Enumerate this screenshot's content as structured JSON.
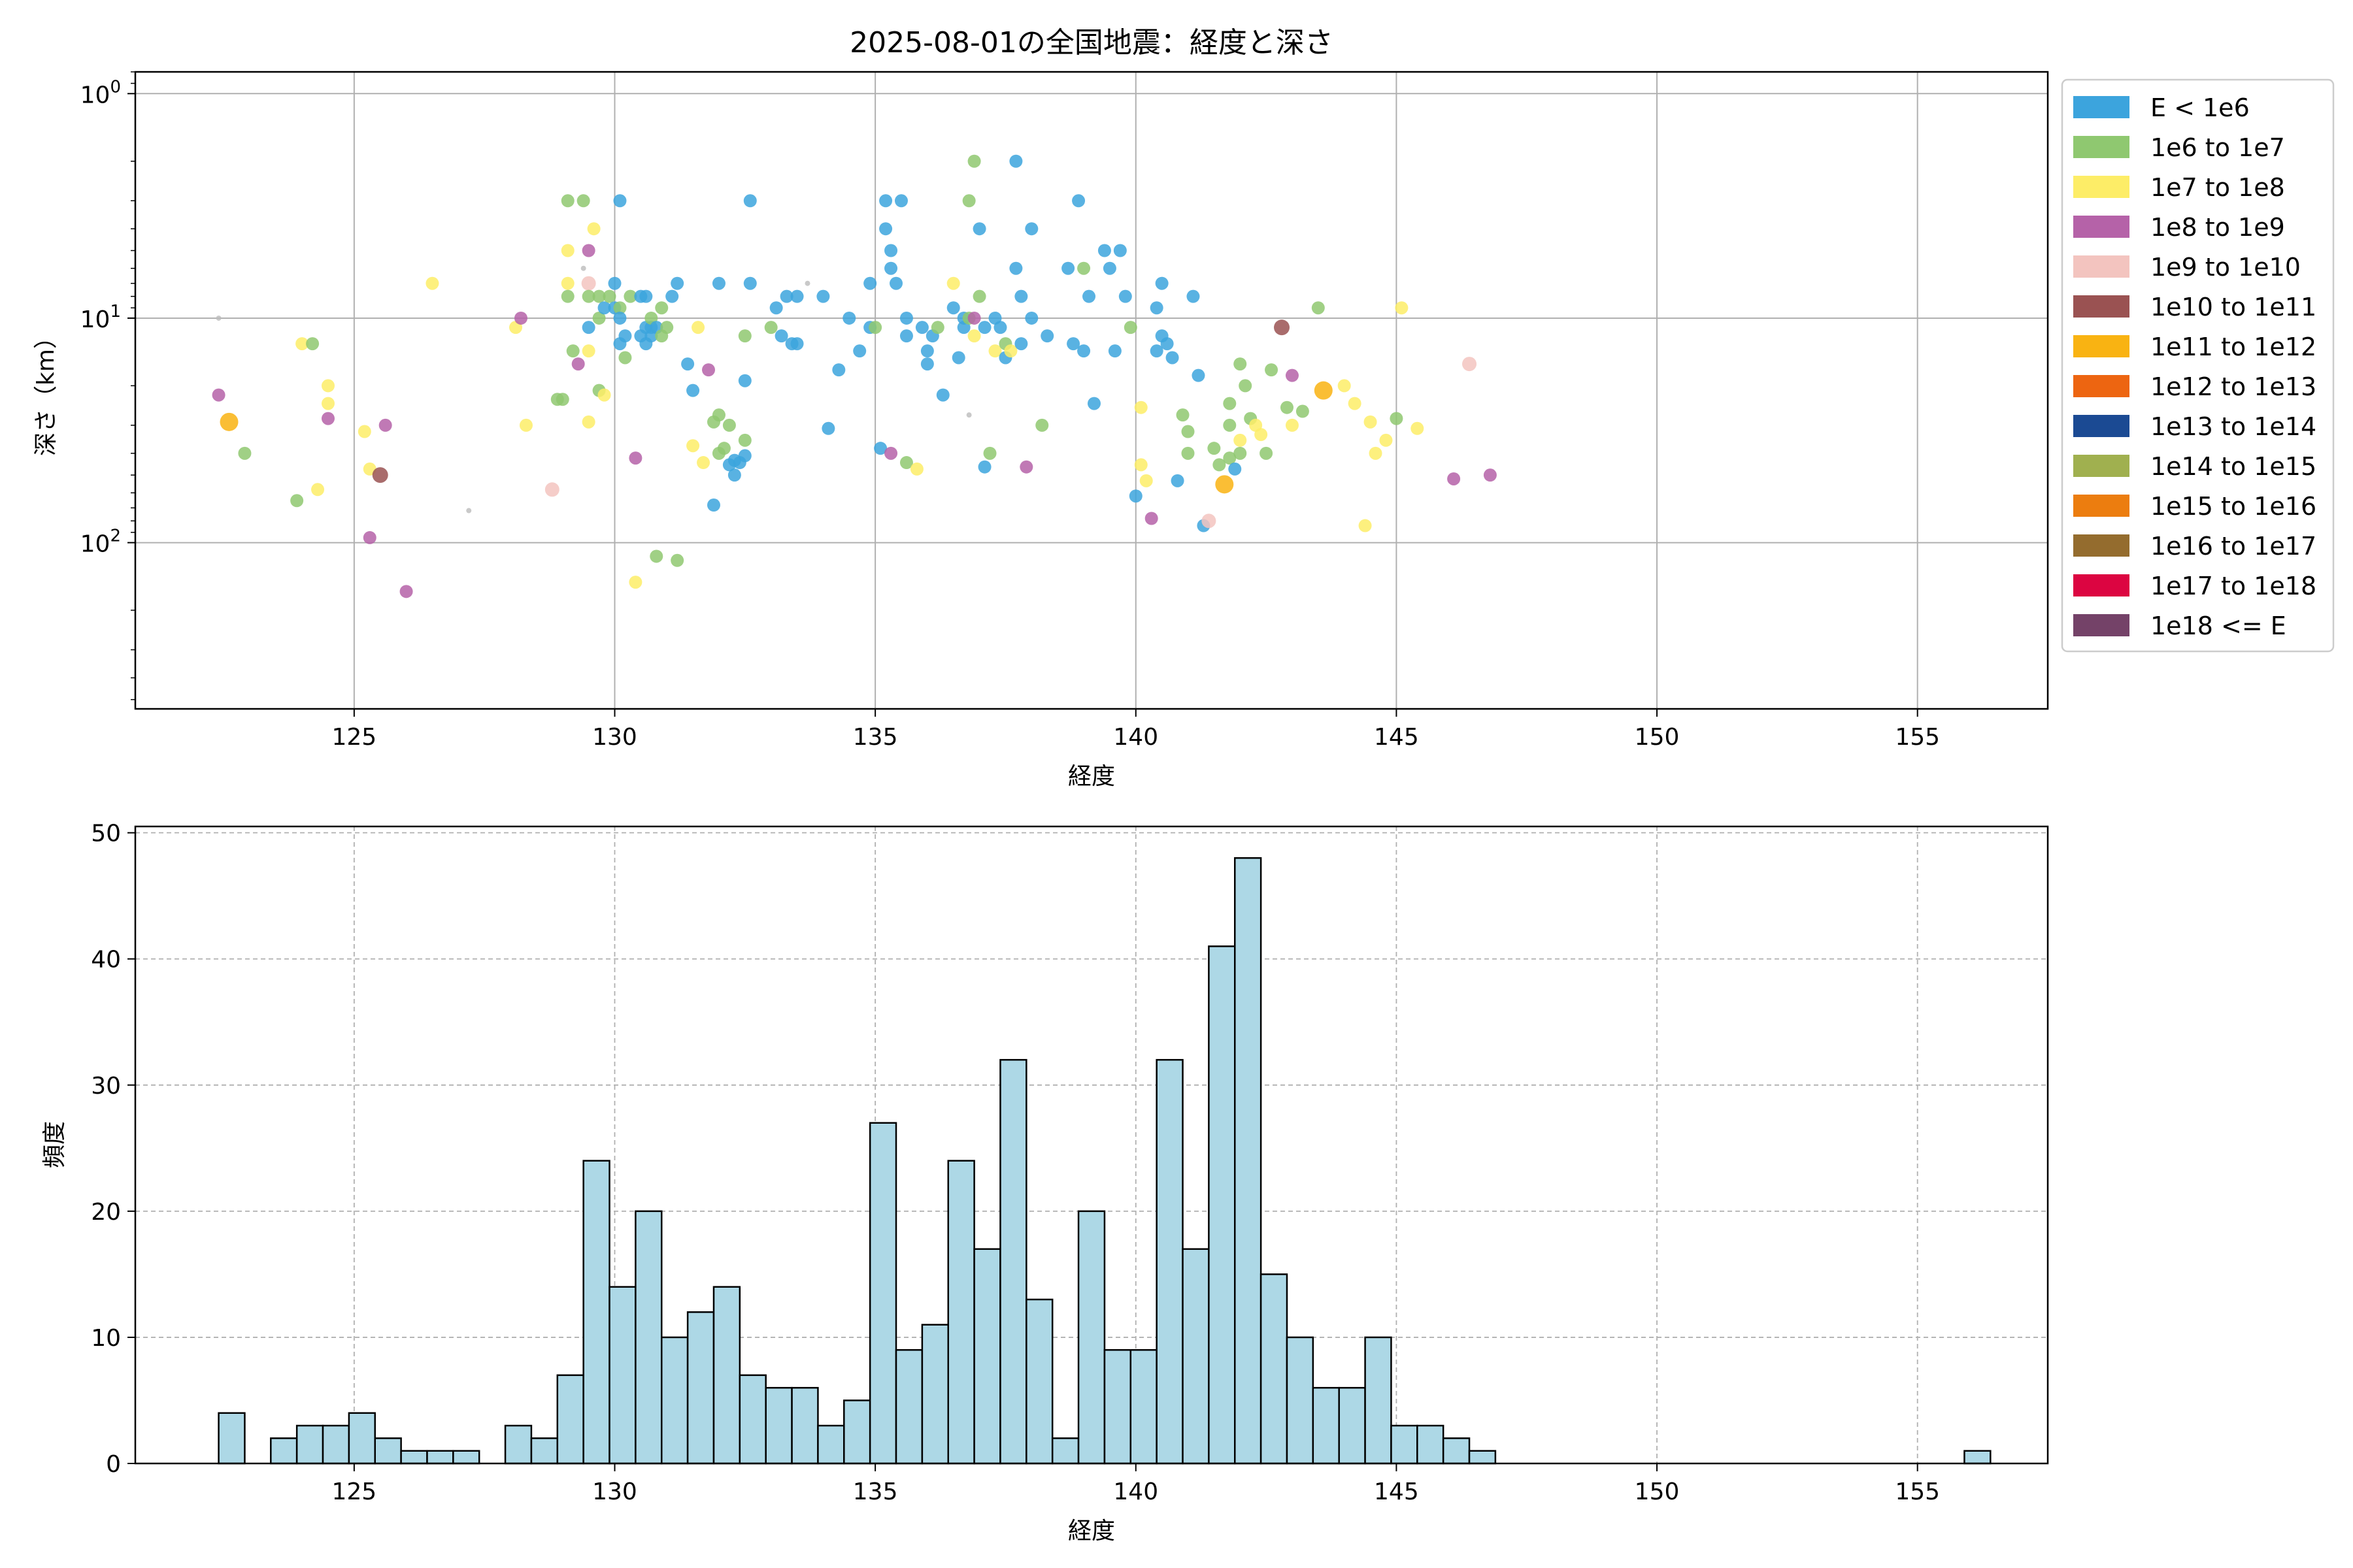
{
  "chart_data": [
    {
      "type": "scatter",
      "title": "2025-08-01の全国地震：経度と深さ",
      "xlabel": "経度",
      "ylabel": "深さ（km）",
      "xlim": [
        120.8,
        157.5
      ],
      "ylim": [
        0.8,
        550
      ],
      "y_scale": "log",
      "y_inverted": true,
      "xticks": [
        125,
        130,
        135,
        140,
        145,
        150,
        155
      ],
      "yticks": [
        {
          "value": 1,
          "base": "10",
          "exp": "0"
        },
        {
          "value": 10,
          "base": "10",
          "exp": "1"
        },
        {
          "value": 100,
          "base": "10",
          "exp": "2"
        }
      ],
      "grid": true,
      "legend_position": "outside-right",
      "legend": [
        {
          "label": "E < 1e6",
          "color": "#3ca4dd"
        },
        {
          "label": "1e6 to 1e7",
          "color": "#8fc870"
        },
        {
          "label": "1e7 to 1e8",
          "color": "#fded67"
        },
        {
          "label": "1e8 to 1e9",
          "color": "#b562a8"
        },
        {
          "label": "1e9 to 1e10",
          "color": "#f3c4bf"
        },
        {
          "label": "1e10 to 1e11",
          "color": "#9a5252"
        },
        {
          "label": "1e11 to 1e12",
          "color": "#f9b312"
        },
        {
          "label": "1e12 to 1e13",
          "color": "#ed6511"
        },
        {
          "label": "1e13 to 1e14",
          "color": "#1b4a93"
        },
        {
          "label": "1e14 to 1e15",
          "color": "#a0b04f"
        },
        {
          "label": "1e15 to 1e16",
          "color": "#ec7d0f"
        },
        {
          "label": "1e16 to 1e17",
          "color": "#946c2e"
        },
        {
          "label": "1e17 to 1e18",
          "color": "#dc0541"
        },
        {
          "label": "1e18 <= E",
          "color": "#744268"
        }
      ],
      "faint_color": "#bbbbbb",
      "points": [
        [
          122.4,
          10,
          -1
        ],
        [
          122.4,
          22,
          3
        ],
        [
          122.6,
          29,
          6
        ],
        [
          122.9,
          40,
          1
        ],
        [
          123.9,
          65,
          1
        ],
        [
          124.0,
          13,
          2
        ],
        [
          124.2,
          13,
          1
        ],
        [
          124.3,
          58,
          2
        ],
        [
          124.5,
          20,
          2
        ],
        [
          124.5,
          24,
          2
        ],
        [
          124.5,
          28,
          3
        ],
        [
          125.2,
          32,
          2
        ],
        [
          125.3,
          47,
          2
        ],
        [
          125.3,
          95,
          3
        ],
        [
          125.5,
          50,
          5
        ],
        [
          125.6,
          30,
          3
        ],
        [
          126.0,
          165,
          3
        ],
        [
          126.5,
          7,
          2
        ],
        [
          127.2,
          72,
          -1
        ],
        [
          128.1,
          11,
          2
        ],
        [
          128.2,
          10,
          3
        ],
        [
          128.3,
          30,
          2
        ],
        [
          128.8,
          58,
          4
        ],
        [
          128.9,
          23,
          1
        ],
        [
          129.0,
          23,
          1
        ],
        [
          129.1,
          3,
          1
        ],
        [
          129.1,
          5,
          2
        ],
        [
          129.1,
          7,
          2
        ],
        [
          129.1,
          8,
          1
        ],
        [
          129.2,
          14,
          1
        ],
        [
          129.3,
          16,
          3
        ],
        [
          129.4,
          3,
          1
        ],
        [
          129.4,
          6,
          -1
        ],
        [
          129.5,
          7,
          4
        ],
        [
          129.5,
          8,
          1
        ],
        [
          129.5,
          5,
          3
        ],
        [
          129.5,
          11,
          0
        ],
        [
          129.5,
          14,
          2
        ],
        [
          129.5,
          29,
          2
        ],
        [
          129.6,
          4,
          2
        ],
        [
          129.7,
          8,
          1
        ],
        [
          129.7,
          10,
          1
        ],
        [
          129.8,
          9,
          0
        ],
        [
          129.7,
          21,
          1
        ],
        [
          129.8,
          22,
          2
        ],
        [
          129.9,
          8,
          1
        ],
        [
          130.0,
          7,
          0
        ],
        [
          130.0,
          9,
          0
        ],
        [
          130.1,
          9,
          1
        ],
        [
          130.1,
          10,
          0
        ],
        [
          130.1,
          13,
          0
        ],
        [
          130.1,
          3,
          0
        ],
        [
          130.2,
          12,
          0
        ],
        [
          130.2,
          15,
          1
        ],
        [
          130.3,
          8,
          1
        ],
        [
          130.4,
          42,
          3
        ],
        [
          130.4,
          150,
          2
        ],
        [
          130.5,
          8,
          0
        ],
        [
          130.5,
          12,
          0
        ],
        [
          130.6,
          11,
          0
        ],
        [
          130.6,
          13,
          0
        ],
        [
          130.6,
          8,
          0
        ],
        [
          130.7,
          11,
          0
        ],
        [
          130.7,
          12,
          0
        ],
        [
          130.7,
          10,
          1
        ],
        [
          130.8,
          11,
          0
        ],
        [
          130.8,
          115,
          1
        ],
        [
          130.9,
          9,
          1
        ],
        [
          130.9,
          12,
          1
        ],
        [
          131.0,
          11,
          1
        ],
        [
          131.1,
          8,
          0
        ],
        [
          131.2,
          7,
          0
        ],
        [
          131.2,
          120,
          1
        ],
        [
          131.4,
          16,
          0
        ],
        [
          131.5,
          21,
          0
        ],
        [
          131.5,
          37,
          2
        ],
        [
          131.6,
          11,
          2
        ],
        [
          131.7,
          44,
          2
        ],
        [
          131.8,
          17,
          3
        ],
        [
          131.9,
          68,
          0
        ],
        [
          131.9,
          29,
          1
        ],
        [
          132.0,
          7,
          0
        ],
        [
          132.0,
          27,
          1
        ],
        [
          132.0,
          40,
          1
        ],
        [
          132.1,
          38,
          1
        ],
        [
          132.2,
          30,
          1
        ],
        [
          132.2,
          45,
          0
        ],
        [
          132.3,
          50,
          0
        ],
        [
          132.3,
          43,
          0
        ],
        [
          132.4,
          44,
          0
        ],
        [
          132.5,
          41,
          0
        ],
        [
          132.5,
          12,
          1
        ],
        [
          132.5,
          19,
          0
        ],
        [
          132.5,
          35,
          1
        ],
        [
          132.6,
          3,
          0
        ],
        [
          132.6,
          7,
          0
        ],
        [
          133.0,
          11,
          1
        ],
        [
          133.1,
          9,
          0
        ],
        [
          133.2,
          12,
          0
        ],
        [
          133.3,
          8,
          0
        ],
        [
          133.4,
          13,
          0
        ],
        [
          133.5,
          8,
          0
        ],
        [
          133.5,
          13,
          0
        ],
        [
          133.7,
          7,
          -1
        ],
        [
          134.0,
          8,
          0
        ],
        [
          134.1,
          31,
          0
        ],
        [
          134.3,
          17,
          0
        ],
        [
          134.5,
          10,
          0
        ],
        [
          134.7,
          14,
          0
        ],
        [
          134.9,
          11,
          0
        ],
        [
          134.9,
          7,
          0
        ],
        [
          135.0,
          11,
          1
        ],
        [
          135.1,
          38,
          0
        ],
        [
          135.2,
          3,
          0
        ],
        [
          135.2,
          4,
          0
        ],
        [
          135.3,
          5,
          0
        ],
        [
          135.3,
          6,
          0
        ],
        [
          135.4,
          7,
          0
        ],
        [
          135.3,
          40,
          3
        ],
        [
          135.5,
          3,
          0
        ],
        [
          135.6,
          10,
          0
        ],
        [
          135.6,
          12,
          0
        ],
        [
          135.6,
          44,
          1
        ],
        [
          135.8,
          47,
          2
        ],
        [
          135.9,
          11,
          0
        ],
        [
          136.0,
          16,
          0
        ],
        [
          136.0,
          14,
          0
        ],
        [
          136.1,
          12,
          0
        ],
        [
          136.2,
          11,
          1
        ],
        [
          136.3,
          22,
          0
        ],
        [
          136.5,
          7,
          2
        ],
        [
          136.5,
          9,
          0
        ],
        [
          136.6,
          15,
          0
        ],
        [
          136.7,
          10,
          0
        ],
        [
          136.7,
          11,
          0
        ],
        [
          136.8,
          3,
          1
        ],
        [
          136.8,
          10,
          1
        ],
        [
          136.8,
          27,
          -1
        ],
        [
          136.9,
          12,
          2
        ],
        [
          136.9,
          2,
          1
        ],
        [
          136.9,
          10,
          3
        ],
        [
          137.0,
          4,
          0
        ],
        [
          137.0,
          8,
          1
        ],
        [
          137.1,
          46,
          0
        ],
        [
          137.1,
          11,
          0
        ],
        [
          137.2,
          40,
          1
        ],
        [
          137.3,
          10,
          0
        ],
        [
          137.3,
          14,
          2
        ],
        [
          137.4,
          11,
          0
        ],
        [
          137.5,
          13,
          1
        ],
        [
          137.5,
          15,
          0
        ],
        [
          137.6,
          14,
          2
        ],
        [
          137.7,
          2,
          0
        ],
        [
          137.7,
          6,
          0
        ],
        [
          137.8,
          8,
          0
        ],
        [
          137.8,
          13,
          0
        ],
        [
          137.9,
          46,
          3
        ],
        [
          138.0,
          4,
          0
        ],
        [
          138.0,
          10,
          0
        ],
        [
          138.2,
          30,
          1
        ],
        [
          138.3,
          12,
          0
        ],
        [
          138.7,
          6,
          0
        ],
        [
          138.8,
          13,
          0
        ],
        [
          138.9,
          3,
          0
        ],
        [
          139.0,
          6,
          1
        ],
        [
          139.0,
          14,
          0
        ],
        [
          139.1,
          8,
          0
        ],
        [
          139.2,
          24,
          0
        ],
        [
          139.4,
          5,
          0
        ],
        [
          139.5,
          6,
          0
        ],
        [
          139.6,
          14,
          0
        ],
        [
          139.7,
          5,
          0
        ],
        [
          139.8,
          8,
          0
        ],
        [
          139.9,
          11,
          1
        ],
        [
          140.0,
          62,
          0
        ],
        [
          140.1,
          45,
          2
        ],
        [
          140.1,
          25,
          2
        ],
        [
          140.2,
          53,
          2
        ],
        [
          140.3,
          78,
          3
        ],
        [
          140.4,
          9,
          0
        ],
        [
          140.4,
          14,
          0
        ],
        [
          140.5,
          12,
          0
        ],
        [
          140.5,
          7,
          0
        ],
        [
          140.6,
          13,
          0
        ],
        [
          140.7,
          15,
          0
        ],
        [
          140.8,
          53,
          0
        ],
        [
          140.9,
          27,
          1
        ],
        [
          141.0,
          32,
          1
        ],
        [
          141.0,
          40,
          1
        ],
        [
          141.1,
          8,
          0
        ],
        [
          141.2,
          18,
          0
        ],
        [
          141.3,
          84,
          0
        ],
        [
          141.4,
          80,
          4
        ],
        [
          141.5,
          38,
          1
        ],
        [
          141.6,
          45,
          1
        ],
        [
          141.7,
          55,
          6
        ],
        [
          141.8,
          24,
          1
        ],
        [
          141.8,
          30,
          1
        ],
        [
          141.8,
          42,
          1
        ],
        [
          141.9,
          47,
          0
        ],
        [
          142.0,
          16,
          1
        ],
        [
          142.0,
          35,
          2
        ],
        [
          142.0,
          40,
          1
        ],
        [
          142.1,
          20,
          1
        ],
        [
          142.2,
          28,
          1
        ],
        [
          142.3,
          30,
          2
        ],
        [
          142.4,
          33,
          2
        ],
        [
          142.5,
          40,
          1
        ],
        [
          142.6,
          17,
          1
        ],
        [
          142.8,
          11,
          5
        ],
        [
          142.9,
          25,
          1
        ],
        [
          143.0,
          30,
          2
        ],
        [
          143.0,
          18,
          3
        ],
        [
          143.2,
          26,
          1
        ],
        [
          143.5,
          9,
          1
        ],
        [
          143.6,
          21,
          6
        ],
        [
          144.0,
          20,
          2
        ],
        [
          144.2,
          24,
          2
        ],
        [
          144.4,
          84,
          2
        ],
        [
          144.5,
          29,
          2
        ],
        [
          144.6,
          40,
          2
        ],
        [
          144.8,
          35,
          2
        ],
        [
          145.0,
          28,
          1
        ],
        [
          145.1,
          9,
          2
        ],
        [
          145.4,
          31,
          2
        ],
        [
          146.1,
          52,
          3
        ],
        [
          146.4,
          16,
          4
        ],
        [
          146.8,
          50,
          3
        ]
      ]
    },
    {
      "type": "bar",
      "subtype": "histogram",
      "xlabel": "経度",
      "ylabel": "頻度",
      "xlim": [
        120.8,
        157.5
      ],
      "ylim": [
        0,
        50.5
      ],
      "xticks": [
        125,
        130,
        135,
        140,
        145,
        150,
        155
      ],
      "yticks": [
        0,
        10,
        20,
        30,
        40,
        50
      ],
      "grid": true,
      "bar_color": "#add8e6",
      "edge_color": "#000000",
      "bin_start": 122.4,
      "bin_width": 0.5,
      "counts": [
        4,
        0,
        2,
        3,
        3,
        4,
        2,
        1,
        1,
        1,
        0,
        3,
        2,
        7,
        24,
        14,
        20,
        10,
        12,
        14,
        7,
        6,
        6,
        3,
        5,
        27,
        9,
        11,
        24,
        17,
        32,
        13,
        2,
        20,
        9,
        9,
        32,
        17,
        41,
        48,
        15,
        10,
        6,
        6,
        10,
        3,
        3,
        2,
        1,
        0,
        0,
        0,
        0,
        0,
        0,
        0,
        0,
        0,
        0,
        0,
        0,
        0,
        0,
        0,
        0,
        0,
        0,
        1
      ]
    }
  ]
}
